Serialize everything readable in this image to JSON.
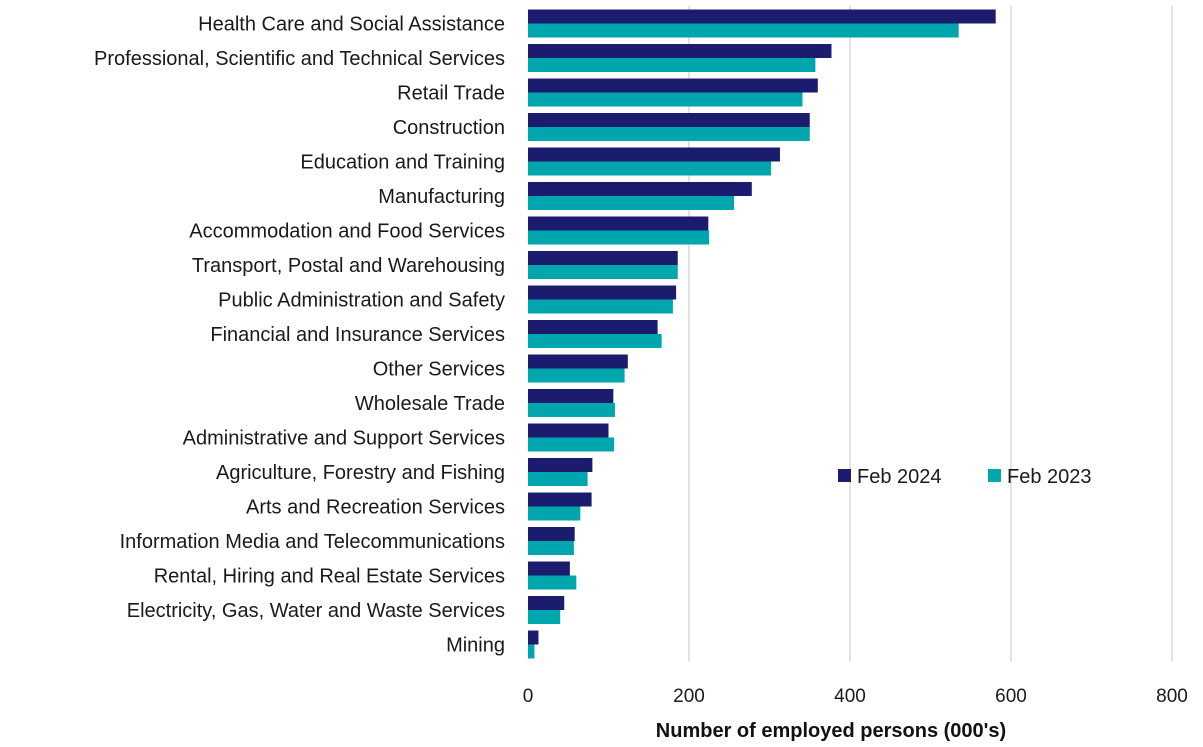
{
  "chart_data": {
    "type": "bar",
    "orientation": "horizontal",
    "categories": [
      "Health Care and Social Assistance",
      "Professional, Scientific and Technical Services",
      "Retail Trade",
      "Construction",
      "Education and Training",
      "Manufacturing",
      "Accommodation and Food Services",
      "Transport, Postal and Warehousing",
      "Public Administration and Safety",
      "Financial and Insurance Services",
      "Other Services",
      "Wholesale Trade",
      "Administrative and Support Services",
      "Agriculture, Forestry and Fishing",
      "Arts and Recreation Services",
      "Information Media and Telecommunications",
      "Rental, Hiring and Real Estate Services",
      "Electricity, Gas, Water and Waste Services",
      "Mining"
    ],
    "series": [
      {
        "name": "Feb 2024",
        "color": "#1c1c6e",
        "values": [
          581,
          377,
          360,
          350,
          313,
          278,
          224,
          186,
          184,
          161,
          124,
          106,
          100,
          80,
          79,
          58,
          52,
          45,
          13
        ]
      },
      {
        "name": "Feb 2023",
        "color": "#00a6ad",
        "values": [
          535,
          357,
          341,
          350,
          302,
          256,
          225,
          186,
          180,
          166,
          120,
          108,
          107,
          74,
          65,
          57,
          60,
          40,
          8
        ]
      }
    ],
    "xlabel": "Number of employed persons (000's)",
    "ylabel": "",
    "xlim": [
      0,
      800
    ],
    "xticks": [
      0,
      200,
      400,
      600,
      800
    ],
    "grid": true,
    "legend_position": "right"
  }
}
